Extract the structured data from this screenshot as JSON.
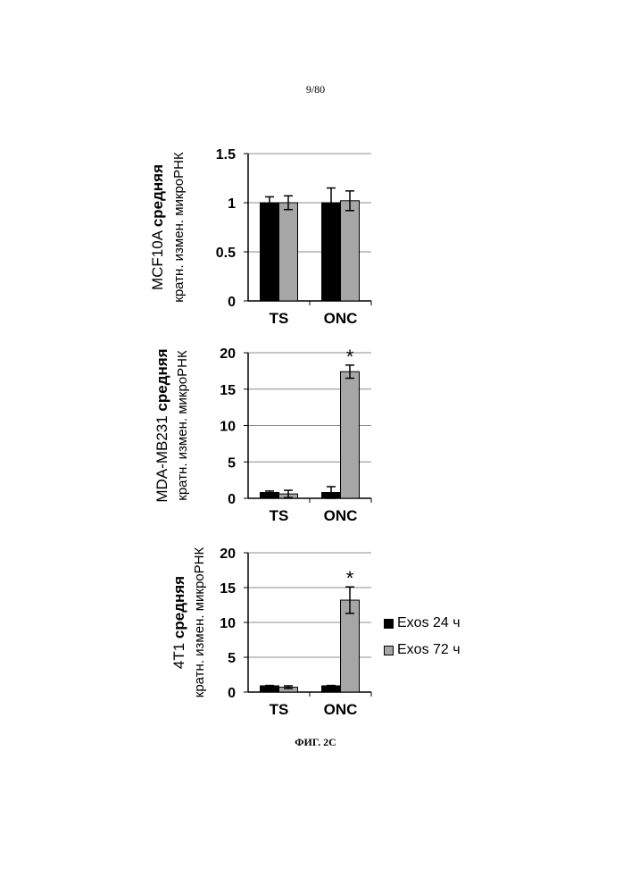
{
  "page": {
    "number": "9/80",
    "figure_caption": "ФИГ. 2С"
  },
  "chart_data": [
    {
      "type": "bar",
      "ylabel_line1": "MCF10A средняя",
      "ylabel_line2": "кратн. измен. микроРНК",
      "categories": [
        "TS",
        "ONC"
      ],
      "ylim": [
        0,
        1.5
      ],
      "yticks": [
        0,
        0.5,
        1,
        1.5
      ],
      "ytick_labels": [
        "0",
        "0.5",
        "1",
        "1.5"
      ],
      "grid": true,
      "series": [
        {
          "name": "Exos 24 ч",
          "color": "#000000",
          "values": [
            1.0,
            1.0
          ],
          "errors": [
            0.06,
            0.15
          ]
        },
        {
          "name": "Exos 72 ч",
          "color": "#a6a6a6",
          "values": [
            1.0,
            1.02
          ],
          "errors": [
            0.07,
            0.1
          ]
        }
      ],
      "annotations": []
    },
    {
      "type": "bar",
      "ylabel_line1": "MDA-MB231 средняя",
      "ylabel_line2": "кратн. измен. микроРНК",
      "categories": [
        "TS",
        "ONC"
      ],
      "ylim": [
        0,
        20
      ],
      "yticks": [
        0,
        5,
        10,
        15,
        20
      ],
      "ytick_labels": [
        "0",
        "5",
        "10",
        "15",
        "20"
      ],
      "grid": true,
      "series": [
        {
          "name": "Exos 24 ч",
          "color": "#000000",
          "values": [
            0.8,
            0.8
          ],
          "errors": [
            0.2,
            0.8
          ]
        },
        {
          "name": "Exos 72 ч",
          "color": "#a6a6a6",
          "values": [
            0.6,
            17.4
          ],
          "errors": [
            0.5,
            0.9
          ]
        }
      ],
      "annotations": [
        {
          "text": "*",
          "category": "ONC",
          "series": 1
        }
      ]
    },
    {
      "type": "bar",
      "ylabel_line1": "4T1 средняя",
      "ylabel_line2": "кратн. измен. микроРНК",
      "categories": [
        "TS",
        "ONC"
      ],
      "ylim": [
        0,
        20
      ],
      "yticks": [
        0,
        5,
        10,
        15,
        20
      ],
      "ytick_labels": [
        "0",
        "5",
        "10",
        "15",
        "20"
      ],
      "grid": true,
      "legend_position": "right",
      "series": [
        {
          "name": "Exos 24 ч",
          "color": "#000000",
          "values": [
            0.9,
            0.9
          ],
          "errors": [
            0.05,
            0.05
          ]
        },
        {
          "name": "Exos 72 ч",
          "color": "#a6a6a6",
          "values": [
            0.7,
            13.2
          ],
          "errors": [
            0.2,
            1.9
          ]
        }
      ],
      "annotations": [
        {
          "text": "*",
          "category": "ONC",
          "series": 1
        }
      ]
    }
  ],
  "legend": {
    "items": [
      {
        "label": "Exos 24 ч",
        "color": "#000000"
      },
      {
        "label": "Exos 72 ч",
        "color": "#a6a6a6"
      }
    ]
  }
}
